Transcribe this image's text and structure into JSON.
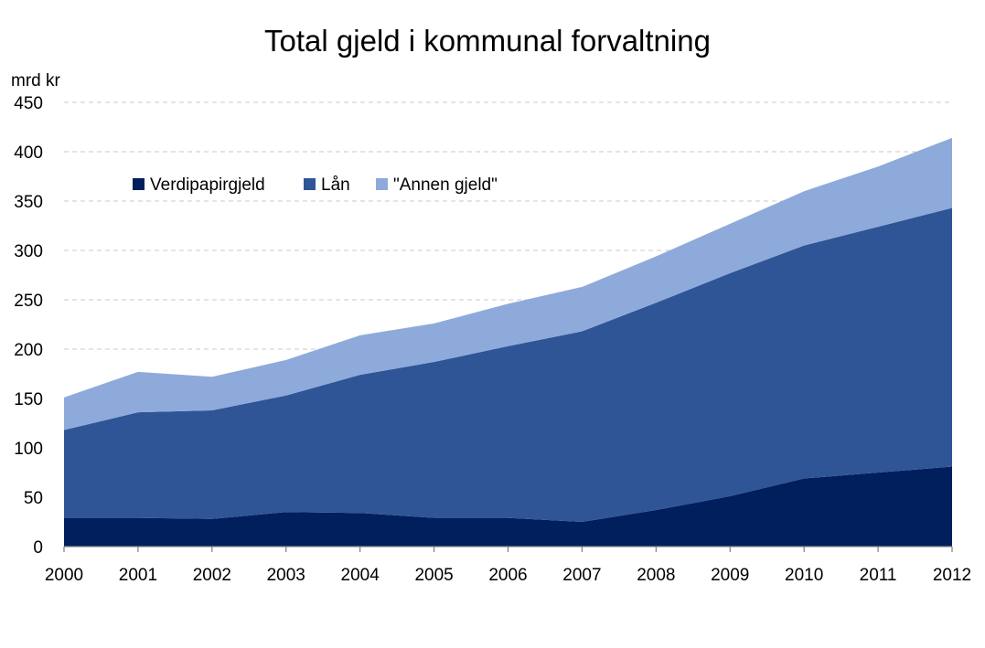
{
  "chart_data": {
    "type": "area",
    "stacked": true,
    "title": "Total gjeld i kommunal forvaltning",
    "ylabel": "mrd kr",
    "xlabel": "",
    "x": [
      "2000",
      "2001",
      "2002",
      "2003",
      "2004",
      "2005",
      "2006",
      "2007",
      "2008",
      "2009",
      "2010",
      "2011",
      "2012"
    ],
    "ylim": [
      0,
      450
    ],
    "yticks": [
      "0",
      "50",
      "100",
      "150",
      "200",
      "250",
      "300",
      "350",
      "400",
      "450"
    ],
    "grid": "horizontal dashed",
    "legend_position": "top-left",
    "series": [
      {
        "name": "Verdipapirgjeld",
        "color": "#001f5c",
        "values": [
          29,
          29,
          28,
          35,
          34,
          29,
          29,
          25,
          37,
          51,
          69,
          75,
          81
        ]
      },
      {
        "name": "Lån",
        "color": "#2f5597",
        "values": [
          89,
          107,
          110,
          118,
          140,
          158,
          174,
          193,
          210,
          226,
          236,
          249,
          262
        ]
      },
      {
        "name": "\"Annen gjeld\"",
        "color": "#8eaadb",
        "values": [
          33,
          41,
          34,
          36,
          40,
          39,
          43,
          45,
          47,
          50,
          55,
          61,
          71
        ]
      }
    ]
  }
}
